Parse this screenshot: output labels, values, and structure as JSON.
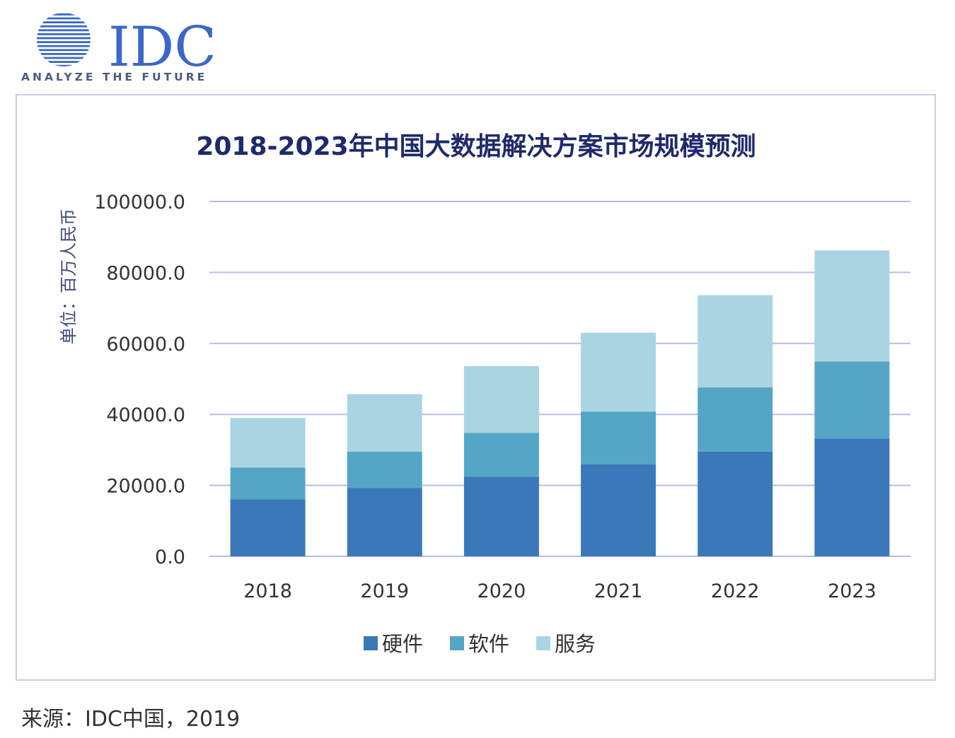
{
  "logo": {
    "brand": "IDC",
    "tagline": "ANALYZE THE FUTURE"
  },
  "colors": {
    "title": "#1f2a6b",
    "ylabel": "#3d4a7a",
    "grid": "#b9bde6",
    "tick": "#333333",
    "logo_blue": "#3a68c8",
    "tagline": "#4d5b7c",
    "frame": "#c8cfe3"
  },
  "chart_data": {
    "type": "bar",
    "stacked": true,
    "title": "2018-2023年中国大数据解决方案市场规模预测",
    "xlabel": "",
    "ylabel": "单位：百万人民币",
    "ylim": [
      0,
      100000
    ],
    "yticks": [
      "0.0",
      "20000.0",
      "40000.0",
      "60000.0",
      "80000.0",
      "100000.0"
    ],
    "grid": true,
    "legend_position": "bottom-center",
    "categories": [
      "2018",
      "2019",
      "2020",
      "2021",
      "2022",
      "2023"
    ],
    "series": [
      {
        "name": "硬件",
        "color": "#3a78b9",
        "values": [
          16100,
          19300,
          22400,
          25900,
          29500,
          33200
        ]
      },
      {
        "name": "软件",
        "color": "#55a6c6",
        "values": [
          8900,
          10200,
          12400,
          14900,
          18100,
          21700
        ]
      },
      {
        "name": "服务",
        "color": "#a9d5e3",
        "values": [
          14000,
          16200,
          18800,
          22200,
          26000,
          31300
        ]
      }
    ]
  },
  "source": {
    "text": "来源：IDC中国，2019"
  }
}
